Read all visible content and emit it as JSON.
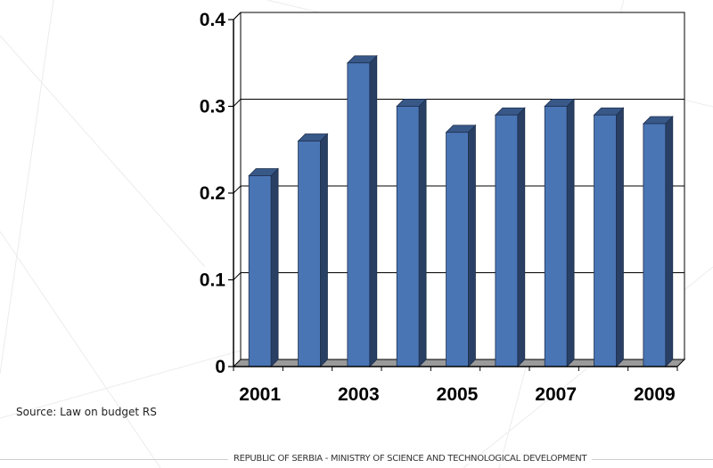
{
  "chart_data": {
    "type": "bar",
    "categories": [
      "2001",
      "2002",
      "2003",
      "2004",
      "2005",
      "2006",
      "2007",
      "2008",
      "2009"
    ],
    "values": [
      0.22,
      0.26,
      0.35,
      0.3,
      0.27,
      0.29,
      0.3,
      0.29,
      0.28
    ],
    "x_tick_labels": [
      "2001",
      "2003",
      "2005",
      "2007",
      "2009"
    ],
    "y_ticks": [
      "0",
      "0.1",
      "0.2",
      "0.3",
      "0.4"
    ],
    "ylim": [
      0,
      0.4
    ],
    "grid": true,
    "bar_color": "#4a75b5",
    "style": "3d-column"
  },
  "source": "Source: Law on budget RS",
  "footer": "REPUBLIC OF SERBIA - MINISTRY OF SCIENCE AND TECHNOLOGICAL DEVELOPMENT"
}
